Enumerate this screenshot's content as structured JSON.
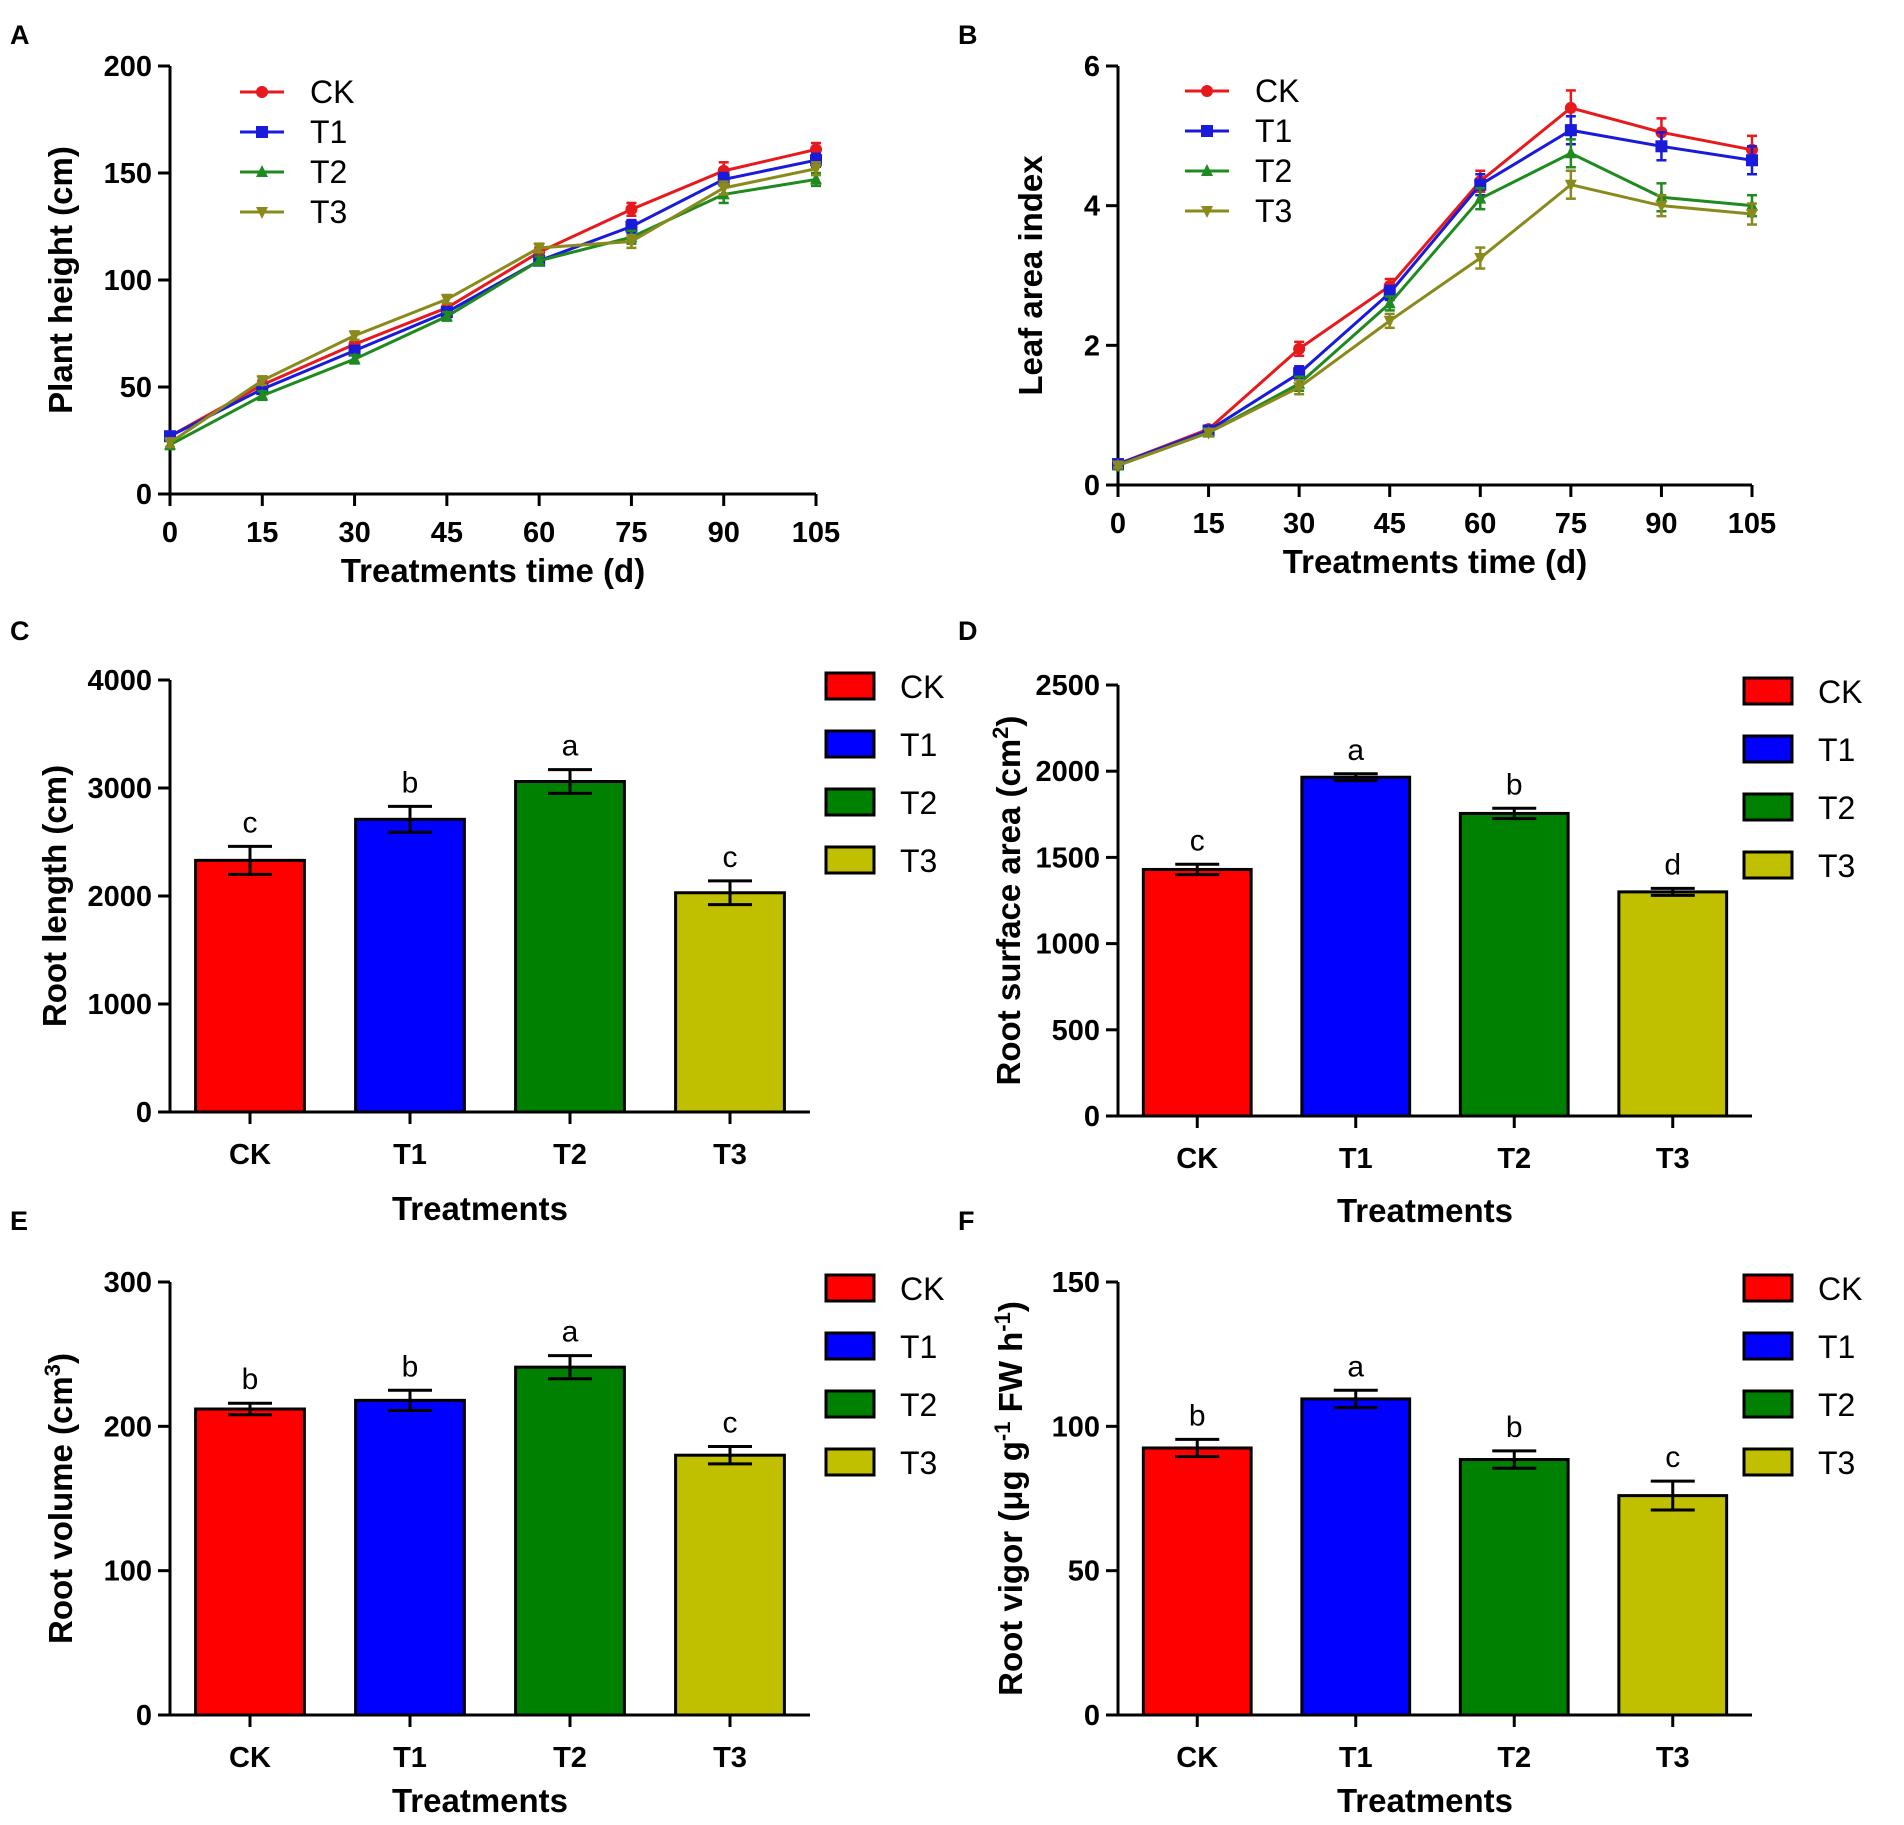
{
  "chart_data": [
    {
      "id": "A",
      "panel_label": "A",
      "type": "line",
      "title": "",
      "xlabel": "Treatments time (d)",
      "ylabel": "Plant height (cm)",
      "x": [
        0,
        15,
        30,
        45,
        60,
        75,
        90,
        105
      ],
      "xticks": [
        "0",
        "15",
        "30",
        "45",
        "60",
        "75",
        "90",
        "105"
      ],
      "ylim": [
        0,
        200
      ],
      "yticks": [
        "0",
        "50",
        "100",
        "150",
        "200"
      ],
      "legend_position": "top-left",
      "series": [
        {
          "name": "CK",
          "color": "#e8191d",
          "marker": "circle",
          "values": [
            27,
            51,
            70,
            87,
            113,
            133,
            151,
            161
          ],
          "errors": [
            2,
            2,
            2,
            2,
            2,
            3,
            4,
            3
          ]
        },
        {
          "name": "T1",
          "color": "#1a1adb",
          "marker": "square",
          "values": [
            27,
            49,
            67,
            85,
            109,
            125,
            147,
            156
          ],
          "errors": [
            2,
            2,
            2,
            2,
            2,
            3,
            3,
            3
          ]
        },
        {
          "name": "T2",
          "color": "#1f8a1f",
          "marker": "triangle-up",
          "values": [
            23,
            46,
            63,
            83,
            109,
            120,
            140,
            147
          ],
          "errors": [
            2,
            2,
            2,
            2,
            2,
            3,
            4,
            3
          ]
        },
        {
          "name": "T3",
          "color": "#8a8a1c",
          "marker": "triangle-down",
          "values": [
            24,
            53,
            74,
            91,
            115,
            118,
            143,
            152
          ],
          "errors": [
            2,
            2,
            2,
            2,
            2,
            3,
            3,
            3
          ]
        }
      ]
    },
    {
      "id": "B",
      "panel_label": "B",
      "type": "line",
      "title": "",
      "xlabel": "Treatments time (d)",
      "ylabel": "Leaf area index",
      "x": [
        0,
        15,
        30,
        45,
        60,
        75,
        90,
        105
      ],
      "xticks": [
        "0",
        "15",
        "30",
        "45",
        "60",
        "75",
        "90",
        "105"
      ],
      "ylim": [
        0,
        6
      ],
      "yticks": [
        "0",
        "2",
        "4",
        "6"
      ],
      "legend_position": "top-left",
      "series": [
        {
          "name": "CK",
          "color": "#e8191d",
          "marker": "circle",
          "values": [
            0.3,
            0.8,
            1.95,
            2.85,
            4.35,
            5.4,
            5.05,
            4.8
          ],
          "errors": [
            0.03,
            0.05,
            0.1,
            0.1,
            0.15,
            0.25,
            0.2,
            0.2
          ]
        },
        {
          "name": "T1",
          "color": "#1a1adb",
          "marker": "square",
          "values": [
            0.3,
            0.78,
            1.6,
            2.75,
            4.3,
            5.08,
            4.85,
            4.65
          ],
          "errors": [
            0.03,
            0.05,
            0.1,
            0.1,
            0.15,
            0.2,
            0.2,
            0.2
          ]
        },
        {
          "name": "T2",
          "color": "#1f8a1f",
          "marker": "triangle-up",
          "values": [
            0.28,
            0.75,
            1.45,
            2.6,
            4.1,
            4.75,
            4.12,
            4.0
          ],
          "errors": [
            0.03,
            0.05,
            0.1,
            0.1,
            0.15,
            0.2,
            0.2,
            0.15
          ]
        },
        {
          "name": "T3",
          "color": "#8a8a1c",
          "marker": "triangle-down",
          "values": [
            0.28,
            0.75,
            1.4,
            2.35,
            3.25,
            4.3,
            4.0,
            3.88
          ],
          "errors": [
            0.03,
            0.05,
            0.1,
            0.1,
            0.15,
            0.2,
            0.15,
            0.15
          ]
        }
      ]
    },
    {
      "id": "C",
      "panel_label": "C",
      "type": "bar",
      "title": "",
      "xlabel": "Treatments",
      "ylabel": "Root length (cm)",
      "categories": [
        "CK",
        "T1",
        "T2",
        "T3"
      ],
      "values": [
        2330,
        2710,
        3060,
        2030
      ],
      "errors": [
        130,
        120,
        110,
        110
      ],
      "letters": [
        "c",
        "b",
        "a",
        "c"
      ],
      "colors": [
        "#ff0000",
        "#0000ff",
        "#008000",
        "#c0c000"
      ],
      "ylim": [
        0,
        4000
      ],
      "yticks": [
        "0",
        "1000",
        "2000",
        "3000",
        "4000"
      ],
      "legend_position": "right",
      "legend": [
        "CK",
        "T1",
        "T2",
        "T3"
      ]
    },
    {
      "id": "D",
      "panel_label": "D",
      "type": "bar",
      "title": "",
      "xlabel": "Treatments",
      "ylabel": "Root surface area (cm",
      "ylabel_sup": "2",
      "ylabel_end": ")",
      "categories": [
        "CK",
        "T1",
        "T2",
        "T3"
      ],
      "values": [
        1430,
        1965,
        1755,
        1300
      ],
      "errors": [
        30,
        20,
        30,
        20
      ],
      "letters": [
        "c",
        "a",
        "b",
        "d"
      ],
      "colors": [
        "#ff0000",
        "#0000ff",
        "#008000",
        "#c0c000"
      ],
      "ylim": [
        0,
        2500
      ],
      "yticks": [
        "0",
        "500",
        "1000",
        "1500",
        "2000",
        "2500"
      ],
      "legend_position": "right",
      "legend": [
        "CK",
        "T1",
        "T2",
        "T3"
      ]
    },
    {
      "id": "E",
      "panel_label": "E",
      "type": "bar",
      "title": "",
      "xlabel": "Treatments",
      "ylabel": "Root volume (cm",
      "ylabel_sup": "3",
      "ylabel_end": ")",
      "categories": [
        "CK",
        "T1",
        "T2",
        "T3"
      ],
      "values": [
        212,
        218,
        241,
        180
      ],
      "errors": [
        4,
        7,
        8,
        6
      ],
      "letters": [
        "b",
        "b",
        "a",
        "c"
      ],
      "colors": [
        "#ff0000",
        "#0000ff",
        "#008000",
        "#c0c000"
      ],
      "ylim": [
        0,
        300
      ],
      "yticks": [
        "0",
        "100",
        "200",
        "300"
      ],
      "legend_position": "right",
      "legend": [
        "CK",
        "T1",
        "T2",
        "T3"
      ]
    },
    {
      "id": "F",
      "panel_label": "F",
      "type": "bar",
      "title": "",
      "xlabel": "Treatments",
      "ylabel": "Root vigor (μg g",
      "ylabel_sup": "-1",
      "ylabel_mid": " FW h",
      "ylabel_sup2": "-1",
      "ylabel_end": ")",
      "categories": [
        "CK",
        "T1",
        "T2",
        "T3"
      ],
      "values": [
        92.5,
        109.5,
        88.5,
        76
      ],
      "errors": [
        3,
        3,
        3,
        5
      ],
      "letters": [
        "b",
        "a",
        "b",
        "c"
      ],
      "colors": [
        "#ff0000",
        "#0000ff",
        "#008000",
        "#c0c000"
      ],
      "ylim": [
        0,
        150
      ],
      "yticks": [
        "0",
        "50",
        "100",
        "150"
      ],
      "legend_position": "right",
      "legend": [
        "CK",
        "T1",
        "T2",
        "T3"
      ]
    }
  ]
}
